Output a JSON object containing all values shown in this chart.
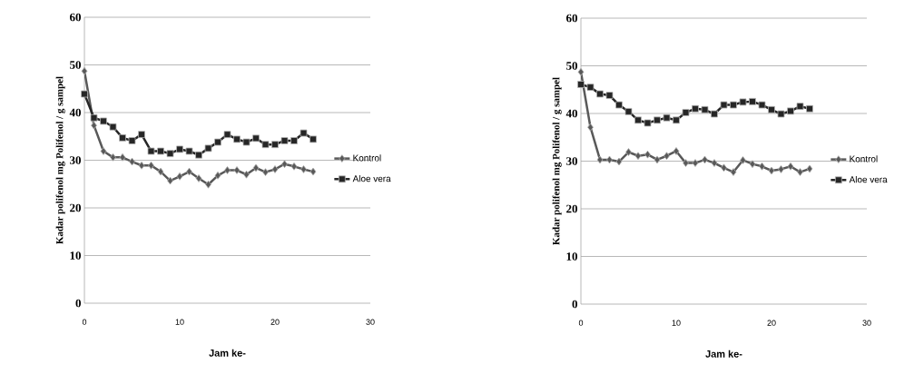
{
  "chart_data": [
    {
      "type": "line",
      "xlabel": "Jam ke-",
      "ylabel": "Kadar polifenol mg Polifenol / g sampel",
      "x": [
        0,
        1,
        2,
        3,
        4,
        5,
        6,
        7,
        8,
        9,
        10,
        11,
        12,
        13,
        14,
        15,
        16,
        17,
        18,
        19,
        20,
        21,
        22,
        23,
        24
      ],
      "xlim": [
        0,
        30
      ],
      "xticks": [
        0,
        10,
        20,
        30
      ],
      "ylim": [
        0,
        60
      ],
      "yticks": [
        0,
        10,
        20,
        30,
        40,
        50,
        60
      ],
      "grid": "y",
      "legend": "right",
      "series": [
        {
          "name": "Kontrol",
          "color": "#595959",
          "marker": "diamond",
          "values": [
            48.7,
            37.3,
            31.9,
            30.6,
            30.6,
            29.7,
            28.9,
            28.9,
            27.6,
            25.7,
            26.6,
            27.6,
            26.2,
            24.9,
            26.8,
            27.9,
            27.9,
            27.0,
            28.4,
            27.5,
            28.1,
            29.2,
            28.7,
            28.1,
            27.6
          ]
        },
        {
          "name": "Aloe vera",
          "color": "#262626",
          "marker": "square",
          "values": [
            43.9,
            38.9,
            38.2,
            37.0,
            34.7,
            34.1,
            35.4,
            31.9,
            31.9,
            31.4,
            32.3,
            31.9,
            31.1,
            32.5,
            33.8,
            35.4,
            34.4,
            33.8,
            34.6,
            33.3,
            33.3,
            34.1,
            34.1,
            35.7,
            34.4
          ]
        }
      ]
    },
    {
      "type": "line",
      "xlabel": "Jam ke-",
      "ylabel": "Kadar polifenol mg Polifenol / g sampel",
      "x": [
        0,
        1,
        2,
        3,
        4,
        5,
        6,
        7,
        8,
        9,
        10,
        11,
        12,
        13,
        14,
        15,
        16,
        17,
        18,
        19,
        20,
        21,
        22,
        23,
        24
      ],
      "xlim": [
        0,
        30
      ],
      "xticks": [
        0,
        10,
        20,
        30
      ],
      "ylim": [
        0,
        60
      ],
      "yticks": [
        0,
        10,
        20,
        30,
        40,
        50,
        60
      ],
      "grid": "y",
      "legend": "right",
      "series": [
        {
          "name": "Kontrol",
          "color": "#595959",
          "marker": "diamond",
          "values": [
            48.7,
            37.1,
            30.3,
            30.3,
            29.9,
            31.9,
            31.1,
            31.4,
            30.3,
            31.1,
            32.1,
            29.6,
            29.6,
            30.3,
            29.6,
            28.6,
            27.7,
            30.2,
            29.4,
            28.9,
            28.0,
            28.3,
            28.9,
            27.7,
            28.4
          ]
        },
        {
          "name": "Aloe vera",
          "color": "#262626",
          "marker": "square",
          "values": [
            46.1,
            45.5,
            44.1,
            43.8,
            41.8,
            40.4,
            38.6,
            38.0,
            38.6,
            39.1,
            38.6,
            40.2,
            41.0,
            40.8,
            39.9,
            41.8,
            41.8,
            42.4,
            42.5,
            41.8,
            40.8,
            39.9,
            40.5,
            41.5,
            41.0
          ]
        }
      ]
    }
  ]
}
